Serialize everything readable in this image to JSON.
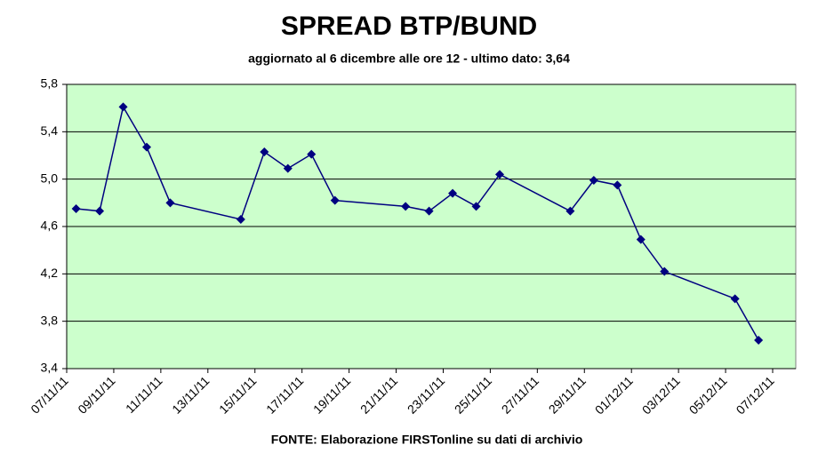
{
  "chart_data": {
    "type": "line",
    "title": "SPREAD BTP/BUND",
    "subtitle": "aggiornato al 6 dicembre alle ore 12 - ultimo dato: 3,64",
    "source": "FONTE: Elaborazione FIRSTonline su dati di archivio",
    "x": [
      "07/11/11",
      "08/11/11",
      "09/11/11",
      "10/11/11",
      "11/11/11",
      "14/11/11",
      "15/11/11",
      "16/11/11",
      "17/11/11",
      "18/11/11",
      "21/11/11",
      "22/11/11",
      "23/11/11",
      "24/11/11",
      "25/11/11",
      "28/11/11",
      "29/11/11",
      "30/11/11",
      "01/12/11",
      "02/12/11",
      "05/12/11",
      "06/12/11"
    ],
    "series": [
      {
        "name": "spread",
        "color": "#000080",
        "values": [
          4.75,
          4.73,
          5.61,
          5.27,
          4.8,
          4.66,
          5.23,
          5.09,
          5.21,
          4.82,
          4.77,
          4.73,
          4.88,
          4.77,
          5.04,
          4.73,
          4.99,
          4.95,
          4.49,
          4.22,
          3.99,
          3.64
        ]
      }
    ],
    "xlim": [
      "07/11/11",
      "07/12/11"
    ],
    "xticks": [
      "07/11/11",
      "09/11/11",
      "11/11/11",
      "13/11/11",
      "15/11/11",
      "17/11/11",
      "19/11/11",
      "21/11/11",
      "23/11/11",
      "25/11/11",
      "27/11/11",
      "29/11/11",
      "01/12/11",
      "03/12/11",
      "05/12/11",
      "07/12/11"
    ],
    "ylim": [
      3.4,
      5.8
    ],
    "yticks": [
      {
        "value": 3.4,
        "label": "3,4"
      },
      {
        "value": 3.8,
        "label": "3,8"
      },
      {
        "value": 4.2,
        "label": "4,2"
      },
      {
        "value": 4.6,
        "label": "4,6"
      },
      {
        "value": 5.0,
        "label": "5,0"
      },
      {
        "value": 5.4,
        "label": "5,4"
      },
      {
        "value": 5.8,
        "label": "5,8"
      }
    ],
    "grid": true,
    "background": "#ccffcc"
  }
}
